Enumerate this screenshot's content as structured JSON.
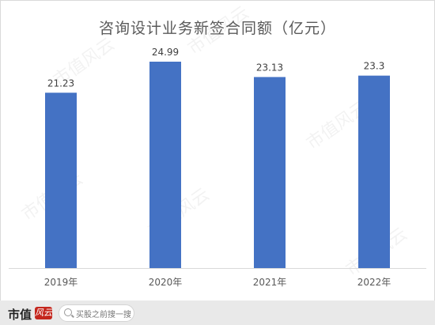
{
  "chart_data": {
    "type": "bar",
    "title": "咨询设计业务新签合同额（亿元）",
    "categories": [
      "2019年",
      "2020年",
      "2021年",
      "2022年"
    ],
    "values": [
      21.23,
      24.99,
      23.13,
      23.3
    ],
    "value_labels": [
      "21.23",
      "24.99",
      "23.13",
      "23.3"
    ],
    "ylim": [
      0,
      27
    ],
    "bar_color": "#4472c4",
    "grid": false,
    "legend": "none"
  },
  "watermark_text": "市值风云",
  "footer": {
    "brand": "市值",
    "brand_mark": "风云",
    "search_placeholder": "买股之前搜一搜"
  }
}
